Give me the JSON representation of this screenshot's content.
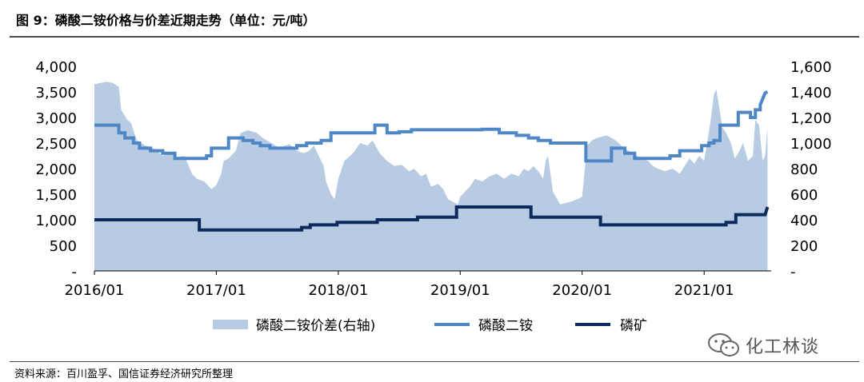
{
  "header": {
    "title": "图 9：磷酸二铵价格与价差近期走势（单位：元/吨）"
  },
  "footer": {
    "source": "资料来源：百川盈孚、国信证券经济研究所整理"
  },
  "watermark": {
    "text": "化工林谈",
    "icon": "wechat-icon"
  },
  "chart_data": {
    "type": "line",
    "x_tick_labels": [
      "2016/01",
      "2017/01",
      "2018/01",
      "2019/01",
      "2020/01",
      "2021/01"
    ],
    "left_axis": {
      "ticks": [
        0,
        500,
        1000,
        1500,
        2000,
        2500,
        3000,
        3500,
        4000
      ],
      "tick_labels": [
        "-",
        "500",
        "1,000",
        "1,500",
        "2,000",
        "2,500",
        "3,000",
        "3,500",
        "4,000"
      ],
      "ylim": [
        0,
        4000
      ]
    },
    "right_axis": {
      "ticks": [
        0,
        200,
        400,
        600,
        800,
        1000,
        1200,
        1400,
        1600
      ],
      "tick_labels": [
        "-",
        "200",
        "400",
        "600",
        "800",
        "1,000",
        "1,200",
        "1,400",
        "1,600"
      ],
      "ylim": [
        0,
        1600
      ]
    },
    "xlim": [
      2016.0,
      2021.55
    ],
    "legend": {
      "position": "bottom"
    },
    "colors": {
      "spread": "#b7cbe3",
      "dap": "#4f86c5",
      "rock": "#0d2a5c"
    },
    "series": [
      {
        "name": "磷酸二铵价差(右轴)",
        "type": "area",
        "axis": "right",
        "x": [
          2016.0,
          2016.05,
          2016.1,
          2016.15,
          2016.2,
          2016.22,
          2016.27,
          2016.3,
          2016.33,
          2016.35,
          2016.42,
          2016.48,
          2016.56,
          2016.62,
          2016.68,
          2016.74,
          2016.8,
          2016.84,
          2016.9,
          2016.96,
          2017.0,
          2017.04,
          2017.06,
          2017.1,
          2017.12,
          2017.16,
          2017.2,
          2017.26,
          2017.33,
          2017.38,
          2017.45,
          2017.52,
          2017.56,
          2017.6,
          2017.66,
          2017.72,
          2017.76,
          2017.8,
          2017.84,
          2017.88,
          2017.9,
          2017.94,
          2017.97,
          2018.0,
          2018.05,
          2018.12,
          2018.18,
          2018.24,
          2018.28,
          2018.3,
          2018.34,
          2018.4,
          2018.46,
          2018.52,
          2018.58,
          2018.62,
          2018.68,
          2018.72,
          2018.76,
          2018.82,
          2018.86,
          2018.9,
          2018.94,
          2018.98,
          2019.0,
          2019.04,
          2019.08,
          2019.12,
          2019.18,
          2019.24,
          2019.3,
          2019.36,
          2019.42,
          2019.48,
          2019.52,
          2019.56,
          2019.6,
          2019.64,
          2019.68,
          2019.7,
          2019.72,
          2019.76,
          2019.82,
          2019.9,
          2019.96,
          2020.0,
          2020.04,
          2020.08,
          2020.12,
          2020.2,
          2020.26,
          2020.3,
          2020.34,
          2020.38,
          2020.42,
          2020.48,
          2020.54,
          2020.58,
          2020.62,
          2020.68,
          2020.74,
          2020.8,
          2020.84,
          2020.88,
          2020.92,
          2020.96,
          2021.0,
          2021.02,
          2021.05,
          2021.08,
          2021.1,
          2021.12,
          2021.15,
          2021.18,
          2021.22,
          2021.25,
          2021.28,
          2021.32,
          2021.36,
          2021.4,
          2021.42,
          2021.45,
          2021.48,
          2021.5,
          2021.52
        ],
        "values": [
          1460,
          1470,
          1480,
          1470,
          1440,
          1260,
          1180,
          1160,
          1070,
          1020,
          980,
          960,
          900,
          920,
          890,
          900,
          760,
          720,
          700,
          640,
          670,
          760,
          860,
          880,
          900,
          940,
          1080,
          1100,
          1080,
          1040,
          1000,
          960,
          980,
          990,
          940,
          920,
          940,
          980,
          900,
          820,
          700,
          600,
          560,
          720,
          860,
          920,
          1000,
          980,
          1020,
          990,
          920,
          860,
          820,
          830,
          780,
          800,
          740,
          760,
          660,
          680,
          640,
          560,
          540,
          520,
          580,
          620,
          660,
          720,
          700,
          740,
          760,
          720,
          760,
          740,
          800,
          780,
          820,
          780,
          720,
          860,
          900,
          620,
          520,
          540,
          560,
          580,
          980,
          1020,
          1040,
          1060,
          1030,
          1000,
          960,
          940,
          920,
          880,
          860,
          820,
          800,
          780,
          800,
          760,
          820,
          880,
          840,
          900,
          860,
          980,
          1150,
          1380,
          1420,
          1300,
          1120,
          1080,
          1000,
          880,
          920,
          1000,
          860,
          900,
          1180,
          1140,
          860,
          900,
          1120
        ]
      },
      {
        "name": "磷酸二铵",
        "type": "line",
        "axis": "left",
        "x": [
          2016.0,
          2016.2,
          2016.2,
          2016.25,
          2016.25,
          2016.32,
          2016.32,
          2016.37,
          2016.37,
          2016.46,
          2016.46,
          2016.56,
          2016.56,
          2016.66,
          2016.66,
          2016.78,
          2016.78,
          2016.92,
          2016.92,
          2016.96,
          2016.96,
          2017.1,
          2017.1,
          2017.22,
          2017.22,
          2017.3,
          2017.3,
          2017.36,
          2017.36,
          2017.44,
          2017.44,
          2017.66,
          2017.66,
          2017.74,
          2017.74,
          2017.86,
          2017.86,
          2017.94,
          2017.94,
          2018.3,
          2018.3,
          2018.4,
          2018.4,
          2018.5,
          2018.5,
          2018.6,
          2018.6,
          2018.8,
          2018.8,
          2019.18,
          2019.18,
          2019.32,
          2019.32,
          2019.46,
          2019.46,
          2019.56,
          2019.56,
          2019.64,
          2019.64,
          2019.74,
          2019.74,
          2020.03,
          2020.03,
          2020.24,
          2020.24,
          2020.35,
          2020.35,
          2020.43,
          2020.43,
          2020.62,
          2020.62,
          2020.72,
          2020.72,
          2020.8,
          2020.8,
          2020.98,
          2020.98,
          2021.04,
          2021.04,
          2021.08,
          2021.08,
          2021.13,
          2021.13,
          2021.28,
          2021.28,
          2021.38,
          2021.38,
          2021.42,
          2021.42,
          2021.46,
          2021.46,
          2021.5,
          2021.52
        ],
        "values": [
          2850,
          2850,
          2700,
          2700,
          2600,
          2600,
          2500,
          2500,
          2400,
          2400,
          2350,
          2350,
          2300,
          2300,
          2200,
          2200,
          2200,
          2200,
          2250,
          2250,
          2400,
          2400,
          2600,
          2600,
          2550,
          2550,
          2500,
          2500,
          2450,
          2450,
          2400,
          2400,
          2450,
          2450,
          2500,
          2500,
          2550,
          2550,
          2700,
          2700,
          2850,
          2850,
          2700,
          2700,
          2720,
          2720,
          2760,
          2760,
          2760,
          2760,
          2770,
          2770,
          2700,
          2700,
          2650,
          2650,
          2600,
          2600,
          2550,
          2550,
          2500,
          2500,
          2150,
          2150,
          2400,
          2400,
          2300,
          2300,
          2200,
          2200,
          2200,
          2200,
          2250,
          2250,
          2350,
          2350,
          2450,
          2450,
          2500,
          2500,
          2550,
          2550,
          2850,
          2850,
          3100,
          3100,
          3000,
          3000,
          3150,
          3150,
          3250,
          3480,
          3500
        ]
      },
      {
        "name": "磷矿",
        "type": "line",
        "axis": "left",
        "x": [
          2016.0,
          2016.86,
          2016.86,
          2017.7,
          2017.7,
          2017.77,
          2017.77,
          2017.99,
          2017.99,
          2018.32,
          2018.32,
          2018.65,
          2018.65,
          2018.97,
          2018.97,
          2019.58,
          2019.58,
          2020.15,
          2020.15,
          2021.18,
          2021.18,
          2021.26,
          2021.26,
          2021.5,
          2021.52
        ],
        "values": [
          1000,
          1000,
          800,
          800,
          850,
          850,
          900,
          900,
          950,
          950,
          1000,
          1000,
          1050,
          1050,
          1250,
          1250,
          1050,
          1050,
          900,
          900,
          950,
          950,
          1100,
          1100,
          1250
        ]
      }
    ]
  }
}
